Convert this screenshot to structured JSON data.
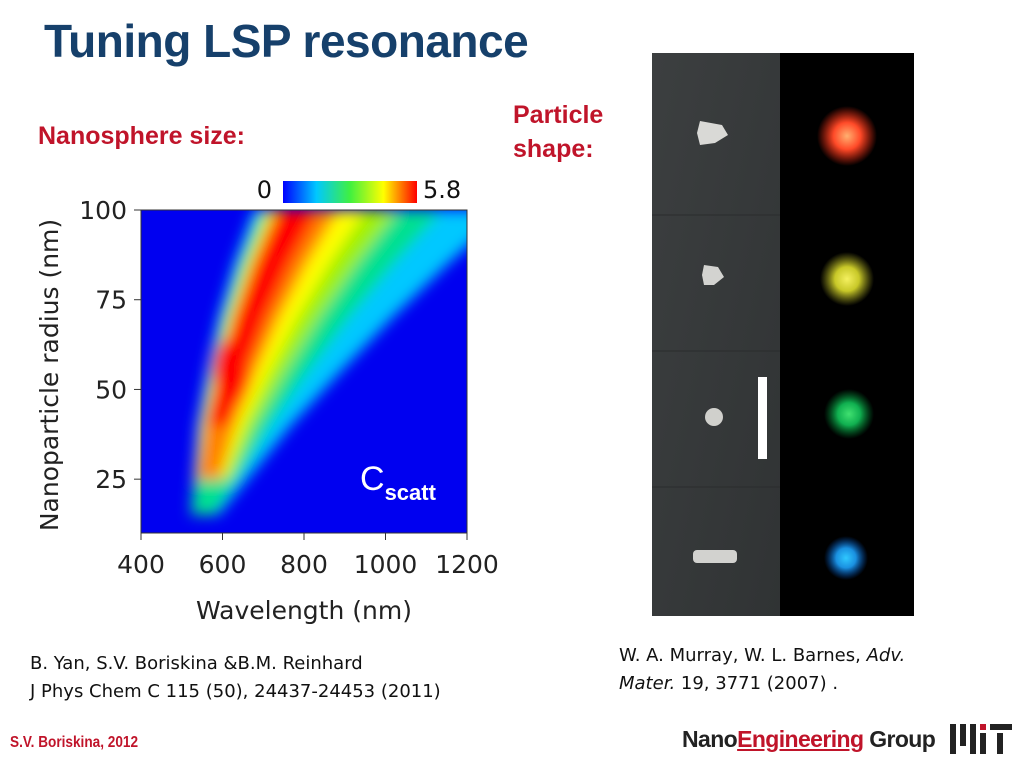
{
  "slide": {
    "title": "Tuning LSP resonance",
    "nanosphere_label": "Nanosphere size:",
    "particle_label_line1": "Particle",
    "particle_label_line2": "shape:"
  },
  "chart_data": {
    "type": "heatmap",
    "title": "",
    "xlabel": "Wavelength (nm)",
    "ylabel": "Nanoparticle radius (nm)",
    "xlim": [
      400,
      1200
    ],
    "ylim": [
      10,
      100
    ],
    "xticks": [
      "400",
      "600",
      "800",
      "1000",
      "1200"
    ],
    "yticks": [
      "25",
      "50",
      "75",
      "100"
    ],
    "colorbar": {
      "min_label": "0",
      "max_label": "5.8"
    },
    "annotation": {
      "main": "C",
      "subscript": "scatt"
    },
    "ridge": [
      {
        "radius": 15,
        "wavelength": 540
      },
      {
        "radius": 25,
        "wavelength": 555
      },
      {
        "radius": 40,
        "wavelength": 575
      },
      {
        "radius": 55,
        "wavelength": 610
      },
      {
        "radius": 70,
        "wavelength": 650
      },
      {
        "radius": 85,
        "wavelength": 700
      },
      {
        "radius": 100,
        "wavelength": 760
      }
    ],
    "peak": {
      "wavelength": 620,
      "radius": 55,
      "value": 5.8
    },
    "colors": [
      "#0000ff",
      "#00c8ff",
      "#00e090",
      "#a0f000",
      "#ffff00",
      "#ff8000",
      "#ff0000"
    ]
  },
  "references": {
    "left_line1": "B. Yan, S.V. Boriskina &B.M. Reinhard",
    "left_line2": "J Phys Chem C 115 (50), 24437-24453 (2011)",
    "right_authors": "W. A. Murray, W. L. Barnes, ",
    "right_journal1": "Adv.",
    "right_journal2": "Mater.",
    "right_rest": " 19, 3771 (2007) ."
  },
  "footer": {
    "author": "S.V. Boriskina, 2012",
    "group_part1": "Nano",
    "group_part2": "Engineering",
    "group_part3": " Group"
  },
  "image_panel": {
    "particles": [
      {
        "shape": "triangle",
        "color": "#ff5030"
      },
      {
        "shape": "small-triangle",
        "color": "#d8d030"
      },
      {
        "shape": "sphere",
        "color": "#10b050"
      },
      {
        "shape": "rod",
        "color": "#1a90e0"
      }
    ]
  }
}
